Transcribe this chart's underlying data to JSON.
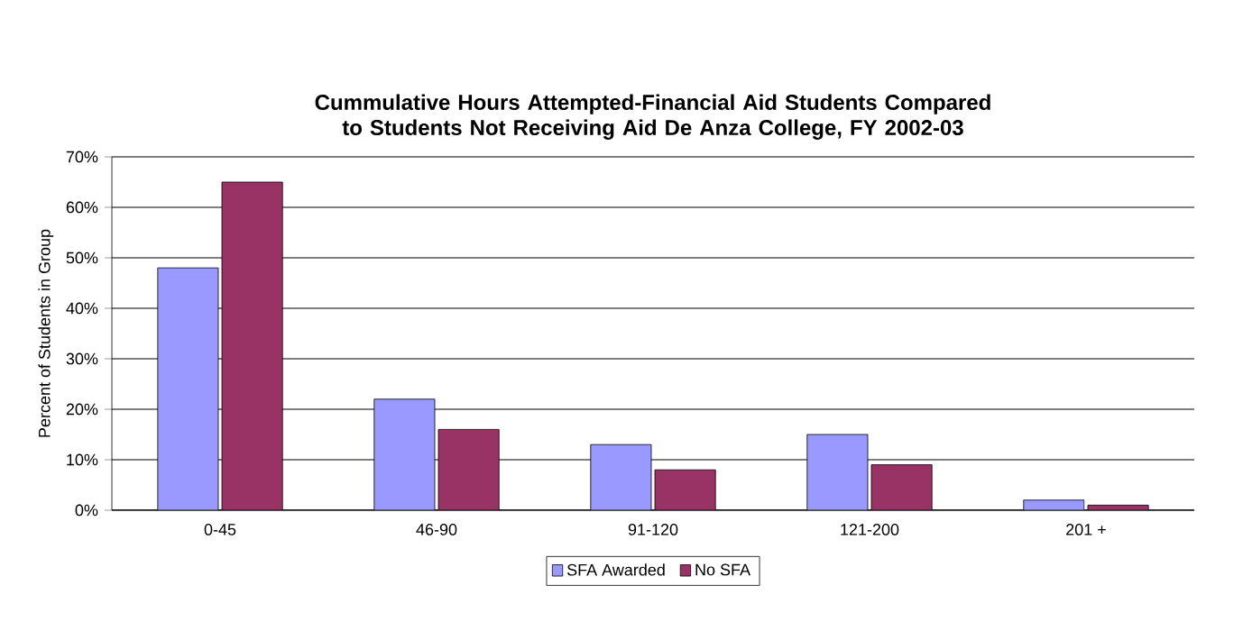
{
  "chart_data": {
    "type": "bar",
    "title": "Cummulative Hours Attempted-Financial Aid Students Compared to Students Not Receiving Aid De Anza College, FY 2002-03",
    "ylabel": "Percent of Students in Group",
    "categories": [
      "0-45",
      "46-90",
      "91-120",
      "121-200",
      "201 +"
    ],
    "series": [
      {
        "name": "SFA Awarded",
        "color": "#9999ff",
        "values": [
          48,
          22,
          13,
          15,
          2
        ]
      },
      {
        "name": "No SFA",
        "color": "#993366",
        "values": [
          65,
          16,
          8,
          9,
          1
        ]
      }
    ],
    "ylim": [
      0,
      70
    ],
    "yticks": [
      {
        "value": 0,
        "label": "0%"
      },
      {
        "value": 10,
        "label": "10%"
      },
      {
        "value": 20,
        "label": "20%"
      },
      {
        "value": 30,
        "label": "30%"
      },
      {
        "value": 40,
        "label": "40%"
      },
      {
        "value": 50,
        "label": "50%"
      },
      {
        "value": 60,
        "label": "60%"
      },
      {
        "value": 70,
        "label": "70%"
      }
    ],
    "grid": "y",
    "legend": "bottom"
  }
}
